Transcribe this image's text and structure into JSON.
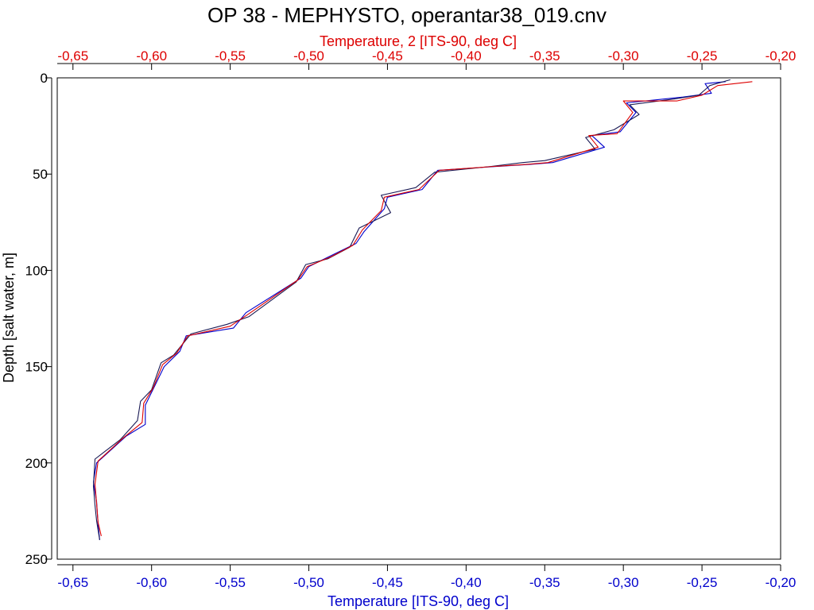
{
  "chart_data": {
    "type": "line",
    "title": "OP 38 - MEPHYSTO, operantar38_019.cnv",
    "xlabel_bottom": "Temperature [ITS-90, deg C]",
    "xlabel_top": "Temperature, 2 [ITS-90, deg C]",
    "ylabel": "Depth [salt water, m]",
    "xlim": [
      -0.66,
      -0.2
    ],
    "ylim": [
      250,
      0
    ],
    "y_inverted": true,
    "grid": false,
    "x_ticks": [
      -0.65,
      -0.6,
      -0.55,
      -0.5,
      -0.45,
      -0.4,
      -0.35,
      -0.3,
      -0.25,
      -0.2
    ],
    "x_tick_labels": [
      "-0,65",
      "-0,60",
      "-0,55",
      "-0,50",
      "-0,45",
      "-0,40",
      "-0,35",
      "-0,30",
      "-0,25",
      "-0,20"
    ],
    "y_ticks": [
      0,
      50,
      100,
      150,
      200,
      250
    ],
    "y_tick_labels": [
      "0",
      "50",
      "100",
      "150",
      "200",
      "250"
    ],
    "colors": {
      "bottom_axis": "#0000cc",
      "top_axis": "#dd0000",
      "text": "#000000"
    },
    "series": [
      {
        "axis": "bottom",
        "color": "#0000cc",
        "x": [
          -0.235,
          -0.248,
          -0.244,
          -0.262,
          -0.298,
          -0.292,
          -0.302,
          -0.32,
          -0.312,
          -0.345,
          -0.36,
          -0.38,
          -0.418,
          -0.428,
          -0.45,
          -0.452,
          -0.465,
          -0.47,
          -0.485,
          -0.5,
          -0.505,
          -0.54,
          -0.548,
          -0.578,
          -0.582,
          -0.592,
          -0.598,
          -0.604,
          -0.604,
          -0.616,
          -0.635,
          -0.637,
          -0.635,
          -0.634,
          -0.633
        ],
        "y": [
          2,
          3,
          8,
          10,
          13,
          18,
          28,
          30,
          36,
          44,
          45,
          46,
          48,
          58,
          62,
          68,
          80,
          86,
          92,
          98,
          104,
          122,
          130,
          134,
          142,
          150,
          160,
          170,
          180,
          186,
          200,
          210,
          220,
          232,
          240
        ]
      },
      {
        "axis": "bottom",
        "color": "#1a1a55",
        "x": [
          -0.232,
          -0.245,
          -0.252,
          -0.268,
          -0.296,
          -0.29,
          -0.306,
          -0.324,
          -0.318,
          -0.35,
          -0.364,
          -0.384,
          -0.42,
          -0.432,
          -0.454,
          -0.448,
          -0.468,
          -0.474,
          -0.488,
          -0.502,
          -0.508,
          -0.538,
          -0.552,
          -0.575,
          -0.586,
          -0.594,
          -0.6,
          -0.607,
          -0.609,
          -0.62,
          -0.636,
          -0.637,
          -0.636,
          -0.635,
          -0.633
        ],
        "y": [
          1,
          4,
          9,
          11,
          14,
          19,
          27,
          31,
          37,
          43,
          44,
          46,
          49,
          57,
          61,
          70,
          78,
          88,
          94,
          97,
          106,
          124,
          128,
          133,
          144,
          148,
          162,
          168,
          178,
          188,
          198,
          212,
          222,
          230,
          240
        ]
      },
      {
        "axis": "top",
        "color": "#dd0000",
        "x": [
          -0.218,
          -0.24,
          -0.25,
          -0.266,
          -0.3,
          -0.294,
          -0.304,
          -0.322,
          -0.316,
          -0.348,
          -0.362,
          -0.382,
          -0.417,
          -0.43,
          -0.452,
          -0.454,
          -0.466,
          -0.472,
          -0.486,
          -0.501,
          -0.507,
          -0.539,
          -0.55,
          -0.577,
          -0.584,
          -0.593,
          -0.599,
          -0.605,
          -0.606,
          -0.618,
          -0.634,
          -0.636,
          -0.635,
          -0.634,
          -0.632
        ],
        "y": [
          2,
          4,
          9,
          12,
          12,
          18,
          29,
          30,
          36,
          44,
          45,
          46,
          48,
          58,
          62,
          69,
          79,
          87,
          93,
          98,
          105,
          123,
          129,
          134,
          143,
          149,
          161,
          169,
          179,
          187,
          199,
          211,
          221,
          231,
          238
        ]
      }
    ]
  }
}
